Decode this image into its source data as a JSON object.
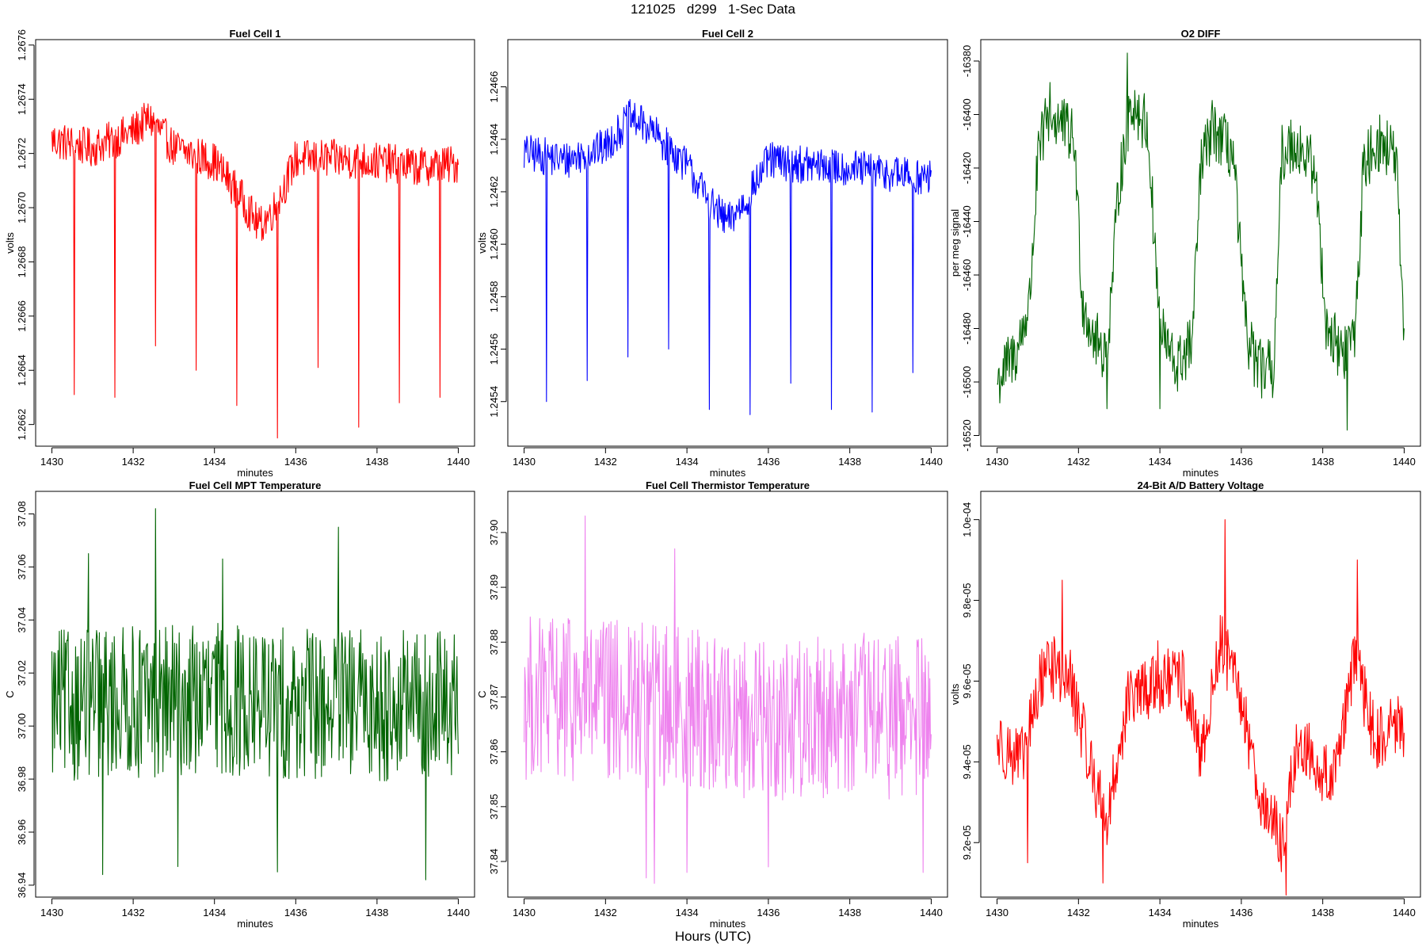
{
  "figure": {
    "title": "121025   d299   1-Sec Data",
    "xlabel": "Hours (UTC)"
  },
  "chart_data": [
    {
      "type": "line",
      "title": "Fuel Cell 1",
      "xlabel": "minutes",
      "ylabel": "volts",
      "color": "#ff0000",
      "xlim": [
        1430,
        1440
      ],
      "ylim": [
        1.26612,
        1.26762
      ],
      "xticks": [
        "1430",
        "1432",
        "1434",
        "1436",
        "1438",
        "1440"
      ],
      "yticks": [
        "1.2662",
        "1.2664",
        "1.2666",
        "1.2668",
        "1.2670",
        "1.2672",
        "1.2674",
        "1.2676"
      ],
      "trend": [
        [
          1430,
          1.26725
        ],
        [
          1431,
          1.26722
        ],
        [
          1432,
          1.26728
        ],
        [
          1432.4,
          1.26733
        ],
        [
          1433,
          1.26722
        ],
        [
          1434,
          1.26717
        ],
        [
          1434.6,
          1.26705
        ],
        [
          1435.1,
          1.26693
        ],
        [
          1435.5,
          1.267
        ],
        [
          1436,
          1.26718
        ],
        [
          1437,
          1.26718
        ],
        [
          1438,
          1.26717
        ],
        [
          1439,
          1.26715
        ],
        [
          1440,
          1.26716
        ]
      ],
      "noise": 4.5e-05,
      "spikes": [
        [
          1430.55,
          1.26631
        ],
        [
          1431.55,
          1.2663
        ],
        [
          1432.55,
          1.26649
        ],
        [
          1433.55,
          1.2664
        ],
        [
          1434.55,
          1.26627
        ],
        [
          1435.55,
          1.26615
        ],
        [
          1436.55,
          1.26641
        ],
        [
          1437.55,
          1.26619
        ],
        [
          1438.55,
          1.26628
        ],
        [
          1439.55,
          1.2663
        ]
      ]
    },
    {
      "type": "line",
      "title": "Fuel Cell 2",
      "xlabel": "minutes",
      "ylabel": "volts",
      "color": "#0000ff",
      "xlim": [
        1430,
        1440
      ],
      "ylim": [
        1.24523,
        1.24678
      ],
      "xticks": [
        "1430",
        "1432",
        "1434",
        "1436",
        "1438",
        "1440"
      ],
      "yticks": [
        "1.2454",
        "1.2456",
        "1.2458",
        "1.2460",
        "1.2462",
        "1.2464",
        "1.2466"
      ],
      "trend": [
        [
          1430,
          1.24635
        ],
        [
          1431,
          1.24632
        ],
        [
          1432,
          1.24637
        ],
        [
          1432.6,
          1.24648
        ],
        [
          1433,
          1.24645
        ],
        [
          1434,
          1.2463
        ],
        [
          1434.6,
          1.24615
        ],
        [
          1435.0,
          1.24608
        ],
        [
          1435.5,
          1.24618
        ],
        [
          1436,
          1.24632
        ],
        [
          1437,
          1.2463
        ],
        [
          1438,
          1.24629
        ],
        [
          1439,
          1.24627
        ],
        [
          1440,
          1.24625
        ]
      ],
      "noise": 4.5e-05,
      "spikes": [
        [
          1430.55,
          1.2454
        ],
        [
          1431.55,
          1.24548
        ],
        [
          1432.55,
          1.24557
        ],
        [
          1433.55,
          1.2456
        ],
        [
          1434.55,
          1.24537
        ],
        [
          1435.55,
          1.24535
        ],
        [
          1436.55,
          1.24547
        ],
        [
          1437.55,
          1.24537
        ],
        [
          1438.55,
          1.24536
        ],
        [
          1439.55,
          1.24551
        ]
      ]
    },
    {
      "type": "line",
      "title": "O2 DIFF",
      "xlabel": "minutes",
      "ylabel": "per meg signal",
      "color": "#006400",
      "xlim": [
        1430,
        1440
      ],
      "ylim": [
        -16524,
        -16372
      ],
      "xticks": [
        "1430",
        "1432",
        "1434",
        "1436",
        "1438",
        "1440"
      ],
      "yticks": [
        "-16520",
        "-16500",
        "-16480",
        "-16460",
        "-16440",
        "-16420",
        "-16400",
        "-16380"
      ],
      "trend": [
        [
          1430,
          -16500
        ],
        [
          1430.5,
          -16488
        ],
        [
          1430.8,
          -16470
        ],
        [
          1431.0,
          -16418
        ],
        [
          1431.2,
          -16402
        ],
        [
          1431.5,
          -16402
        ],
        [
          1431.9,
          -16410
        ],
        [
          1432.1,
          -16470
        ],
        [
          1432.4,
          -16484
        ],
        [
          1432.7,
          -16490
        ],
        [
          1433.0,
          -16425
        ],
        [
          1433.3,
          -16395
        ],
        [
          1433.7,
          -16405
        ],
        [
          1434.0,
          -16480
        ],
        [
          1434.4,
          -16495
        ],
        [
          1434.8,
          -16485
        ],
        [
          1435.0,
          -16420
        ],
        [
          1435.3,
          -16405
        ],
        [
          1435.8,
          -16415
        ],
        [
          1436.1,
          -16480
        ],
        [
          1436.4,
          -16495
        ],
        [
          1436.8,
          -16495
        ],
        [
          1437.0,
          -16415
        ],
        [
          1437.3,
          -16410
        ],
        [
          1437.8,
          -16420
        ],
        [
          1438.1,
          -16480
        ],
        [
          1438.5,
          -16490
        ],
        [
          1438.8,
          -16480
        ],
        [
          1439.0,
          -16420
        ],
        [
          1439.3,
          -16410
        ],
        [
          1439.8,
          -16415
        ],
        [
          1440,
          -16490
        ]
      ],
      "noise": 7,
      "spikes": [
        [
          1433.2,
          -16377
        ],
        [
          1431.3,
          -16388
        ],
        [
          1432.7,
          -16510
        ],
        [
          1434.0,
          -16510
        ],
        [
          1438.6,
          -16518
        ],
        [
          1436.5,
          -16506
        ]
      ]
    },
    {
      "type": "line",
      "title": "Fuel Cell MPT Temperature",
      "xlabel": "minutes",
      "ylabel": "C",
      "color": "#006400",
      "xlim": [
        1430,
        1440
      ],
      "ylim": [
        36.9355,
        37.0885
      ],
      "xticks": [
        "1430",
        "1432",
        "1434",
        "1436",
        "1438",
        "1440"
      ],
      "yticks": [
        "36.94",
        "36.96",
        "36.98",
        "37.00",
        "37.02",
        "37.04",
        "37.06",
        "37.08"
      ],
      "trend": [
        [
          1430,
          37.008
        ],
        [
          1432,
          37.009
        ],
        [
          1434,
          37.01
        ],
        [
          1436,
          37.008
        ],
        [
          1438,
          37.008
        ],
        [
          1440,
          37.008
        ]
      ],
      "noise": 0.018,
      "spikes": [
        [
          1432.55,
          37.082
        ],
        [
          1437.05,
          37.075
        ],
        [
          1431.25,
          36.944
        ],
        [
          1435.55,
          36.945
        ],
        [
          1439.2,
          36.942
        ],
        [
          1433.1,
          36.947
        ],
        [
          1430.9,
          37.065
        ],
        [
          1434.2,
          37.063
        ]
      ]
    },
    {
      "type": "line",
      "title": "Fuel Cell Thermistor Temperature",
      "xlabel": "minutes",
      "ylabel": "C",
      "color": "#ee82ee",
      "xlim": [
        1430,
        1440
      ],
      "ylim": [
        37.8335,
        37.9075
      ],
      "xticks": [
        "1430",
        "1432",
        "1434",
        "1436",
        "1438",
        "1440"
      ],
      "yticks": [
        "37.84",
        "37.85",
        "37.86",
        "37.87",
        "37.88",
        "37.89",
        "37.90"
      ],
      "trend": [
        [
          1430,
          37.87
        ],
        [
          1432,
          37.869
        ],
        [
          1434,
          37.868
        ],
        [
          1436,
          37.866
        ],
        [
          1438,
          37.867
        ],
        [
          1440,
          37.866
        ]
      ],
      "noise": 0.0095,
      "spikes": [
        [
          1431.5,
          37.903
        ],
        [
          1433.7,
          37.897
        ],
        [
          1433.2,
          37.836
        ],
        [
          1433.0,
          37.837
        ],
        [
          1436.0,
          37.839
        ],
        [
          1439.8,
          37.838
        ],
        [
          1434.0,
          37.838
        ]
      ]
    },
    {
      "type": "line",
      "title": "24-Bit A/D Battery Voltage",
      "xlabel": "minutes",
      "ylabel": "volts",
      "color": "#ff0000",
      "xlim": [
        1430,
        1440
      ],
      "ylim": [
        9.065e-05,
        0.0001007
      ],
      "xticks": [
        "1430",
        "1432",
        "1434",
        "1436",
        "1438",
        "1440"
      ],
      "yticks": [
        "9.2e-05",
        "9.4e-05",
        "9.6e-05",
        "9.8e-05",
        "1.0e-04"
      ],
      "trend": [
        [
          1430,
          9.45e-05
        ],
        [
          1430.6,
          9.4e-05
        ],
        [
          1431.2,
          9.65e-05
        ],
        [
          1431.8,
          9.6e-05
        ],
        [
          1432.4,
          9.35e-05
        ],
        [
          1432.7,
          9.25e-05
        ],
        [
          1433.2,
          9.55e-05
        ],
        [
          1434.0,
          9.6e-05
        ],
        [
          1434.6,
          9.6e-05
        ],
        [
          1435.0,
          9.4e-05
        ],
        [
          1435.5,
          9.7e-05
        ],
        [
          1436.0,
          9.55e-05
        ],
        [
          1436.5,
          9.3e-05
        ],
        [
          1437.0,
          9.2e-05
        ],
        [
          1437.4,
          9.45e-05
        ],
        [
          1437.8,
          9.4e-05
        ],
        [
          1438.2,
          9.35e-05
        ],
        [
          1438.8,
          9.65e-05
        ],
        [
          1439.3,
          9.45e-05
        ],
        [
          1439.8,
          9.5e-05
        ],
        [
          1440,
          9.45e-05
        ]
      ],
      "noise": 5e-07,
      "spikes": [
        [
          1435.6,
          0.0001
        ],
        [
          1438.85,
          9.9e-05
        ],
        [
          1437.1,
          9.07e-05
        ],
        [
          1432.6,
          9.1e-05
        ],
        [
          1431.6,
          9.85e-05
        ],
        [
          1430.75,
          9.15e-05
        ],
        [
          1433.95,
          9.7e-05
        ]
      ]
    }
  ]
}
